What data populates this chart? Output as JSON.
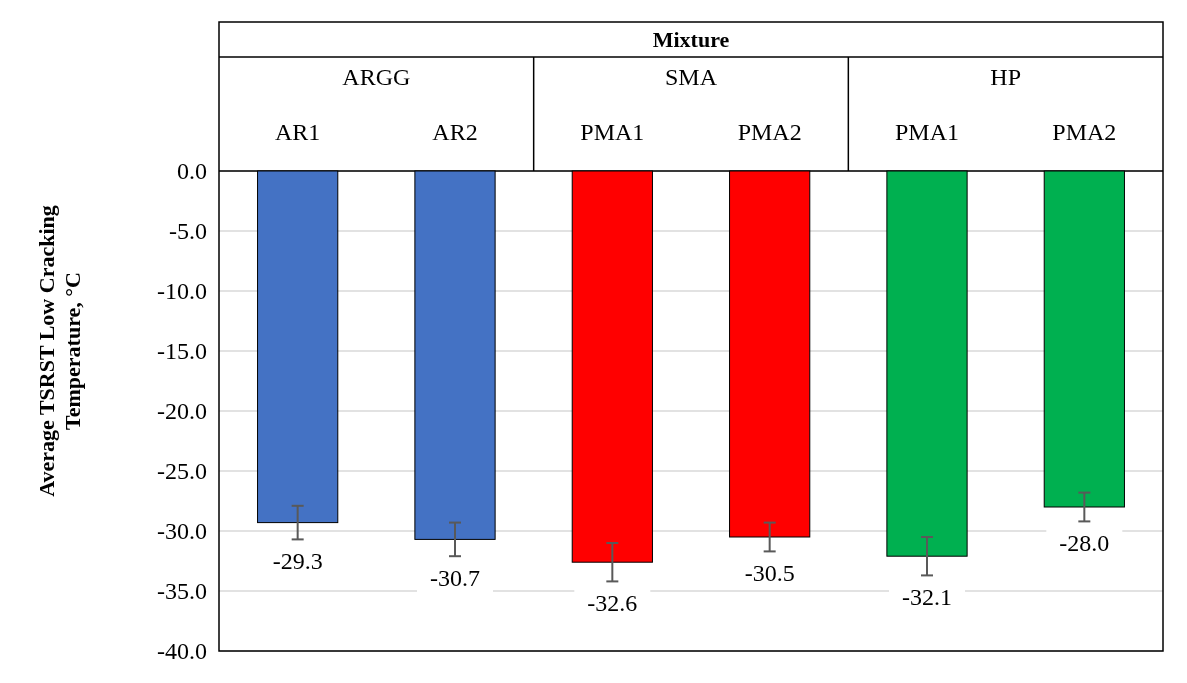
{
  "chart_data": {
    "type": "bar",
    "xlabel": "Mixture",
    "ylabel": "Average TSRST  Low Cracking Temperature, °C",
    "categories": [
      "AR1",
      "AR2",
      "PMA1",
      "PMA2",
      "PMA1",
      "PMA2"
    ],
    "values": [
      -29.3,
      -30.7,
      -32.6,
      -30.5,
      -32.1,
      -28.0
    ],
    "value_labels": [
      "-29.3",
      "-30.7",
      "-32.6",
      "-30.5",
      "-32.1",
      "-28.0"
    ],
    "colors": [
      "#4472c4",
      "#4472c4",
      "#ff0000",
      "#ff0000",
      "#00b050",
      "#00b050"
    ],
    "errors": [
      1.4,
      1.4,
      1.6,
      1.2,
      1.6,
      1.2
    ],
    "annotations": [
      "ARGG",
      "SMA",
      "HP"
    ],
    "ylim": [
      -40,
      0
    ],
    "yticks": [
      {
        "value": 0,
        "label": "0.0"
      },
      {
        "value": -5,
        "label": "-5.0"
      },
      {
        "value": -10,
        "label": "-10.0"
      },
      {
        "value": -15,
        "label": "-15.0"
      },
      {
        "value": -20,
        "label": "-20.0"
      },
      {
        "value": -25,
        "label": "-25.0"
      },
      {
        "value": -30,
        "label": "-30.0"
      },
      {
        "value": -35,
        "label": "-35.0"
      },
      {
        "value": -40,
        "label": "-40.0"
      }
    ],
    "grid": "y"
  }
}
